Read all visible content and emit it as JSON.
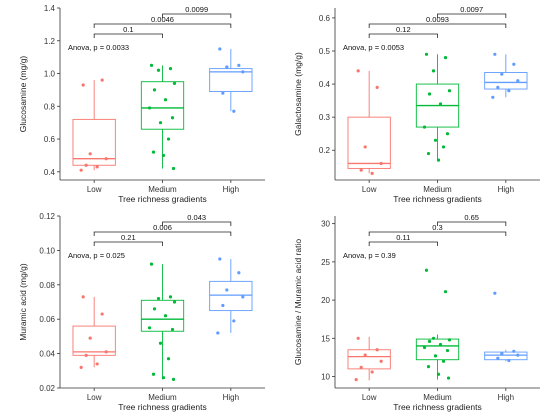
{
  "colors": {
    "Low": "#F8766D",
    "Medium": "#00BA38",
    "High": "#619CFF"
  },
  "chart_data": [
    {
      "type": "box",
      "id": "a",
      "xlabel": "Tree richness gradients",
      "ylabel": "Glucosamine (mg/g)",
      "categories": [
        "Low",
        "Medium",
        "High"
      ],
      "ylim": [
        0.35,
        1.4
      ],
      "yticks": [
        0.4,
        0.6,
        0.8,
        1.0,
        1.2,
        1.4
      ],
      "ytick_labels": [
        "0.4",
        "0.6",
        "0.8",
        "1.0",
        "1.2",
        "1.4"
      ],
      "boxes": [
        {
          "q1": 0.44,
          "median": 0.48,
          "q3": 0.72,
          "lo": 0.41,
          "hi": 0.96
        },
        {
          "q1": 0.66,
          "median": 0.79,
          "q3": 0.95,
          "lo": 0.42,
          "hi": 1.05
        },
        {
          "q1": 0.89,
          "median": 1.01,
          "q3": 1.03,
          "lo": 0.77,
          "hi": 1.15
        }
      ],
      "points": [
        [
          0.93,
          0.96,
          0.51,
          0.48,
          0.44,
          0.43,
          0.41
        ],
        [
          1.05,
          1.03,
          1.02,
          0.94,
          0.9,
          0.84,
          0.79,
          0.73,
          0.7,
          0.6,
          0.52,
          0.5,
          0.42
        ],
        [
          1.15,
          1.05,
          1.04,
          1.01,
          0.88,
          0.77
        ]
      ],
      "annotations": [
        {
          "text": "Anova, p = 0.0033"
        },
        {
          "text": "0.1",
          "from": 0,
          "to": 1
        },
        {
          "text": "0.0046",
          "from": 0,
          "to": 2
        },
        {
          "text": "0.0099",
          "from": 1,
          "to": 2
        }
      ]
    },
    {
      "type": "box",
      "id": "b",
      "xlabel": "Tree richness gradients",
      "ylabel": "Galactosamine (mg/g)",
      "categories": [
        "Low",
        "Medium",
        "High"
      ],
      "ylim": [
        0.11,
        0.63
      ],
      "yticks": [
        0.2,
        0.3,
        0.4,
        0.5,
        0.6
      ],
      "ytick_labels": [
        "0.2",
        "0.3",
        "0.4",
        "0.5",
        "0.6"
      ],
      "boxes": [
        {
          "q1": 0.145,
          "median": 0.16,
          "q3": 0.3,
          "lo": 0.13,
          "hi": 0.44
        },
        {
          "q1": 0.27,
          "median": 0.335,
          "q3": 0.4,
          "lo": 0.17,
          "hi": 0.49
        },
        {
          "q1": 0.385,
          "median": 0.405,
          "q3": 0.435,
          "lo": 0.36,
          "hi": 0.49
        }
      ],
      "points": [
        [
          0.44,
          0.39,
          0.21,
          0.16,
          0.14,
          0.13
        ],
        [
          0.49,
          0.48,
          0.44,
          0.38,
          0.37,
          0.34,
          0.27,
          0.25,
          0.23,
          0.21,
          0.19,
          0.17
        ],
        [
          0.49,
          0.46,
          0.43,
          0.41,
          0.39,
          0.38,
          0.36
        ]
      ],
      "annotations": [
        {
          "text": "Anova, p = 0.0053"
        },
        {
          "text": "0.12",
          "from": 0,
          "to": 1
        },
        {
          "text": "0.0093",
          "from": 0,
          "to": 2
        },
        {
          "text": "0.0097",
          "from": 1,
          "to": 2
        }
      ]
    },
    {
      "type": "box",
      "id": "c",
      "xlabel": "Tree richness gradients",
      "ylabel": "Muramic acid (mg/g)",
      "categories": [
        "Low",
        "Medium",
        "High"
      ],
      "ylim": [
        0.02,
        0.12
      ],
      "yticks": [
        0.02,
        0.04,
        0.06,
        0.08,
        0.1,
        0.12
      ],
      "ytick_labels": [
        "0.02",
        "0.04",
        "0.06",
        "0.08",
        "0.10",
        "0.12"
      ],
      "boxes": [
        {
          "q1": 0.039,
          "median": 0.041,
          "q3": 0.056,
          "lo": 0.032,
          "hi": 0.073
        },
        {
          "q1": 0.053,
          "median": 0.06,
          "q3": 0.071,
          "lo": 0.025,
          "hi": 0.092
        },
        {
          "q1": 0.065,
          "median": 0.074,
          "q3": 0.082,
          "lo": 0.052,
          "hi": 0.095
        }
      ],
      "points": [
        [
          0.073,
          0.063,
          0.049,
          0.041,
          0.039,
          0.034,
          0.032
        ],
        [
          0.092,
          0.073,
          0.072,
          0.07,
          0.066,
          0.062,
          0.055,
          0.054,
          0.046,
          0.037,
          0.028,
          0.026,
          0.025
        ],
        [
          0.095,
          0.087,
          0.077,
          0.073,
          0.068,
          0.059,
          0.052
        ]
      ],
      "annotations": [
        {
          "text": "Anova, p = 0.025"
        },
        {
          "text": "0.21",
          "from": 0,
          "to": 1
        },
        {
          "text": "0.006",
          "from": 0,
          "to": 2
        },
        {
          "text": "0.043",
          "from": 1,
          "to": 2
        }
      ]
    },
    {
      "type": "box",
      "id": "d",
      "xlabel": "Tree richness gradients",
      "ylabel": "Glucosamine / Muramic acid ratio",
      "categories": [
        "Low",
        "Medium",
        "High"
      ],
      "ylim": [
        8.5,
        31
      ],
      "yticks": [
        10,
        15,
        20,
        25,
        30
      ],
      "ytick_labels": [
        "10",
        "15",
        "20",
        "25",
        "30"
      ],
      "boxes": [
        {
          "q1": 11.0,
          "median": 12.6,
          "q3": 13.5,
          "lo": 9.5,
          "hi": 15.2
        },
        {
          "q1": 12.2,
          "median": 14.0,
          "q3": 14.9,
          "lo": 9.6,
          "hi": 15.5
        },
        {
          "q1": 12.2,
          "median": 12.8,
          "q3": 13.2,
          "lo": 12.0,
          "hi": 13.5
        }
      ],
      "points": [
        [
          15.0,
          13.5,
          12.8,
          12.0,
          11.2,
          10.6,
          9.6
        ],
        [
          23.9,
          21.1,
          15.0,
          14.8,
          14.6,
          14.2,
          13.8,
          13.4,
          12.7,
          12.0,
          11.3,
          10.3,
          9.8
        ],
        [
          20.9,
          13.3,
          13.0,
          12.8,
          12.4,
          12.1
        ]
      ],
      "annotations": [
        {
          "text": "Anova, p = 0.39"
        },
        {
          "text": "0.11",
          "from": 0,
          "to": 1
        },
        {
          "text": "0.3",
          "from": 0,
          "to": 2
        },
        {
          "text": "0.65",
          "from": 1,
          "to": 2
        }
      ]
    }
  ]
}
